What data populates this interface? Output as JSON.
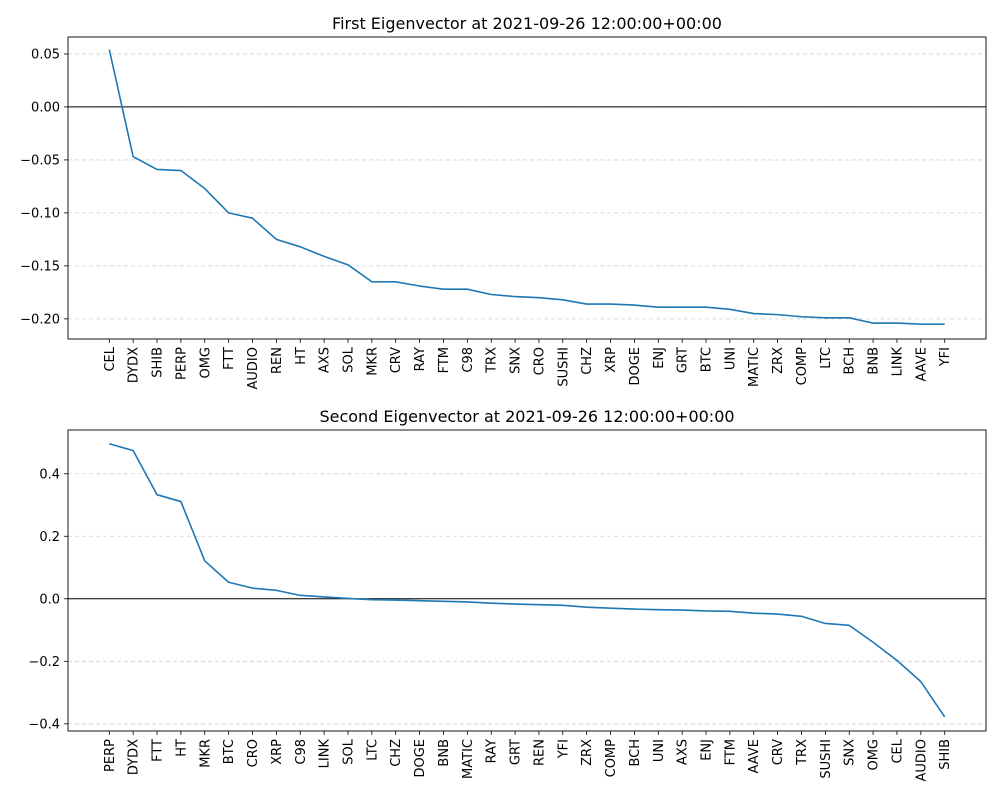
{
  "chart_data": [
    {
      "type": "line",
      "title": "First Eigenvector at 2021-09-26 12:00:00+00:00",
      "xlabel": "",
      "ylabel": "",
      "categories": [
        "CEL",
        "DYDX",
        "SHIB",
        "PERP",
        "OMG",
        "FTT",
        "AUDIO",
        "REN",
        "HT",
        "AXS",
        "SOL",
        "MKR",
        "CRV",
        "RAY",
        "FTM",
        "C98",
        "TRX",
        "SNX",
        "CRO",
        "SUSHI",
        "CHZ",
        "XRP",
        "DOGE",
        "ENJ",
        "GRT",
        "BTC",
        "UNI",
        "MATIC",
        "ZRX",
        "COMP",
        "LTC",
        "BCH",
        "BNB",
        "LINK",
        "AAVE",
        "YFI"
      ],
      "values": [
        0.054,
        -0.047,
        -0.059,
        -0.06,
        -0.077,
        -0.1,
        -0.105,
        -0.125,
        -0.132,
        -0.141,
        -0.149,
        -0.165,
        -0.165,
        -0.169,
        -0.172,
        -0.172,
        -0.177,
        -0.179,
        -0.18,
        -0.182,
        -0.186,
        -0.186,
        -0.187,
        -0.189,
        -0.189,
        -0.189,
        -0.191,
        -0.195,
        -0.196,
        -0.198,
        -0.199,
        -0.199,
        -0.204,
        -0.204,
        -0.205,
        -0.205
      ],
      "ylim": [
        -0.219,
        0.066
      ],
      "yticks": [
        0.05,
        0.0,
        -0.05,
        -0.1,
        -0.15,
        -0.2
      ],
      "ytick_labels": [
        "0.05",
        "0.00",
        "−0.05",
        "−0.10",
        "−0.15",
        "−0.20"
      ],
      "grid": "y-dashed",
      "zero_line": true,
      "line_color": "#1f77b4"
    },
    {
      "type": "line",
      "title": "Second Eigenvector at 2021-09-26 12:00:00+00:00",
      "xlabel": "",
      "ylabel": "",
      "categories": [
        "PERP",
        "DYDX",
        "FTT",
        "HT",
        "MKR",
        "BTC",
        "CRO",
        "XRP",
        "C98",
        "LINK",
        "SOL",
        "LTC",
        "CHZ",
        "DOGE",
        "BNB",
        "MATIC",
        "RAY",
        "GRT",
        "REN",
        "YFI",
        "ZRX",
        "COMP",
        "BCH",
        "UNI",
        "AXS",
        "ENJ",
        "FTM",
        "AAVE",
        "CRV",
        "TRX",
        "SUSHI",
        "SNX",
        "OMG",
        "CEL",
        "AUDIO",
        "SHIB"
      ],
      "values": [
        0.496,
        0.474,
        0.333,
        0.311,
        0.121,
        0.053,
        0.034,
        0.027,
        0.011,
        0.006,
        0.001,
        -0.003,
        -0.004,
        -0.006,
        -0.008,
        -0.01,
        -0.014,
        -0.017,
        -0.019,
        -0.021,
        -0.027,
        -0.03,
        -0.033,
        -0.035,
        -0.036,
        -0.039,
        -0.04,
        -0.046,
        -0.049,
        -0.056,
        -0.079,
        -0.085,
        -0.139,
        -0.197,
        -0.265,
        -0.378
      ],
      "ylim": [
        -0.423,
        0.54
      ],
      "yticks": [
        0.4,
        0.2,
        0.0,
        -0.2,
        -0.4
      ],
      "ytick_labels": [
        "0.4",
        "0.2",
        "0.0",
        "−0.2",
        "−0.4"
      ],
      "grid": "y-dashed",
      "zero_line": true,
      "line_color": "#1f77b4"
    }
  ]
}
